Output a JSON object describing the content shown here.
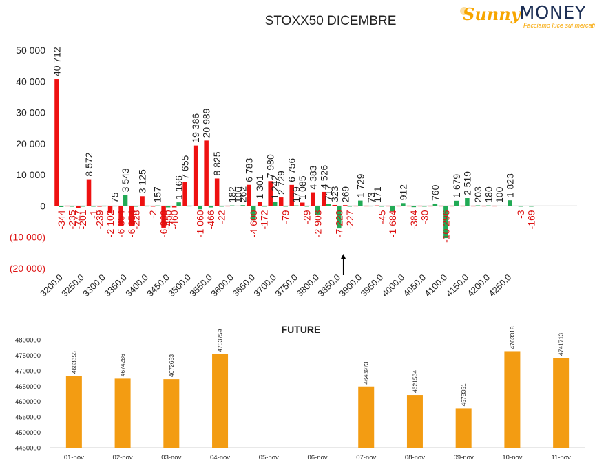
{
  "brand": {
    "name_a": "Sunny",
    "name_b": "MONEY",
    "tagline": "Facciamo luce sui mercati",
    "colors": {
      "sunny": "#f7a600",
      "money": "#1d2f55"
    }
  },
  "chart_data": [
    {
      "type": "bar",
      "title": "STOXX50 DICEMBRE",
      "ylim": [
        -20000,
        50000
      ],
      "yticks": [
        -20000,
        -10000,
        0,
        10000,
        20000,
        30000,
        40000,
        50000
      ],
      "ytick_labels": [
        "(20 000)",
        "(10 000)",
        "0",
        "10 000",
        "20 000",
        "30 000",
        "40 000",
        "50 000"
      ],
      "xtick_labels": [
        "3200.0",
        "3250.0",
        "3300.0",
        "3350.0",
        "3400.0",
        "3450.0",
        "3500.0",
        "3550.0",
        "3600.0",
        "3650.0",
        "3700.0",
        "3750.0",
        "3800.0",
        "3850.0",
        "3900.0",
        "3950.0",
        "4000.0",
        "4050.0",
        "4100.0",
        "4150.0",
        "4200.0",
        "4250.0"
      ],
      "strike_step": 25,
      "strike_min": 3200,
      "colors": {
        "positive": "#ee1111",
        "negative": "#22aa55",
        "negative_label": "#dd1111"
      },
      "marker_strike": 3875,
      "series": [
        {
          "values": [
            {
              "x": 3200,
              "v": 40712,
              "label": "40 712"
            },
            {
              "x": 3225,
              "v": 0
            },
            {
              "x": 3250,
              "v": -747,
              "label": "-747"
            },
            {
              "x": 3275,
              "v": 8572,
              "label": "8 572"
            },
            {
              "x": 3300,
              "v": -239,
              "label": "-239"
            },
            {
              "x": 3325,
              "v": -2102,
              "label": "-2 102"
            },
            {
              "x": 3350,
              "v": -6354,
              "label": "-6 354"
            },
            {
              "x": 3375,
              "v": -6354,
              "label": "-6 354"
            },
            {
              "x": 3400,
              "v": 3125,
              "label": "3 125"
            },
            {
              "x": 3425,
              "v": -2,
              "label": "-2"
            },
            {
              "x": 3450,
              "v": -6960,
              "label": "-6 960"
            },
            {
              "x": 3475,
              "v": -460,
              "label": "-460"
            },
            {
              "x": 3500,
              "v": 7655,
              "label": "7 655"
            },
            {
              "x": 3525,
              "v": 19386,
              "label": "19 386"
            },
            {
              "x": 3550,
              "v": 20989,
              "label": "20 989"
            },
            {
              "x": 3575,
              "v": 8825,
              "label": "8 825"
            },
            {
              "x": 3600,
              "v": 0
            },
            {
              "x": 3625,
              "v": 100,
              "label": "100"
            },
            {
              "x": 3650,
              "v": 6783,
              "label": "6 783"
            },
            {
              "x": 3675,
              "v": 1301,
              "label": "1 301"
            },
            {
              "x": 3700,
              "v": 7980,
              "label": "7 980"
            },
            {
              "x": 3725,
              "v": 2729,
              "label": "2 729"
            },
            {
              "x": 3750,
              "v": 6756,
              "label": "6 756"
            },
            {
              "x": 3775,
              "v": 1085,
              "label": "1 085"
            },
            {
              "x": 3800,
              "v": 4383,
              "label": "4 383"
            },
            {
              "x": 3825,
              "v": 4526,
              "label": "4 526"
            },
            {
              "x": 3850,
              "v": 323,
              "label": "323"
            },
            {
              "x": 3875,
              "v": 269,
              "label": "269"
            },
            {
              "x": 3900,
              "v": 0
            },
            {
              "x": 3925,
              "v": 0
            },
            {
              "x": 3950,
              "v": 171,
              "label": "171"
            },
            {
              "x": 3975,
              "v": 0
            },
            {
              "x": 4000,
              "v": 0
            },
            {
              "x": 4025,
              "v": 0
            },
            {
              "x": 4050,
              "v": 0
            },
            {
              "x": 4075,
              "v": 0
            },
            {
              "x": 4100,
              "v": 0
            },
            {
              "x": 4125,
              "v": 0
            },
            {
              "x": 4150,
              "v": 0
            },
            {
              "x": 4175,
              "v": 0
            },
            {
              "x": 4200,
              "v": 0
            },
            {
              "x": 4225,
              "v": 0
            }
          ]
        },
        {
          "values": [
            {
              "x": 3200,
              "v": -344,
              "label": "-344"
            },
            {
              "x": 3225,
              "v": -235,
              "label": "-235"
            },
            {
              "x": 3250,
              "v": -201,
              "label": "-201"
            },
            {
              "x": 3275,
              "v": -1,
              "label": "-1"
            },
            {
              "x": 3300,
              "v": 0
            },
            {
              "x": 3325,
              "v": 75,
              "label": "75"
            },
            {
              "x": 3350,
              "v": 3543,
              "label": "3 543"
            },
            {
              "x": 3375,
              "v": -228,
              "label": "-228"
            },
            {
              "x": 3400,
              "v": 0
            },
            {
              "x": 3425,
              "v": 157,
              "label": "157"
            },
            {
              "x": 3450,
              "v": -450,
              "label": "-450"
            },
            {
              "x": 3475,
              "v": 1166,
              "label": "1 166"
            },
            {
              "x": 3500,
              "v": 0
            },
            {
              "x": 3525,
              "v": -1060,
              "label": "-1 060"
            },
            {
              "x": 3550,
              "v": -466,
              "label": "-466"
            },
            {
              "x": 3575,
              "v": -22,
              "label": "-22"
            },
            {
              "x": 3600,
              "v": 182,
              "label": "182"
            },
            {
              "x": 3625,
              "v": 262,
              "label": "262"
            },
            {
              "x": 3650,
              "v": -4600,
              "label": "-4 600"
            },
            {
              "x": 3675,
              "v": -172,
              "label": "-172"
            },
            {
              "x": 3700,
              "v": 1242,
              "label": "1 242"
            },
            {
              "x": 3725,
              "v": -79,
              "label": "-79"
            },
            {
              "x": 3750,
              "v": 179,
              "label": "179"
            },
            {
              "x": 3775,
              "v": -29,
              "label": "-29"
            },
            {
              "x": 3800,
              "v": -2903,
              "label": "-2 903"
            },
            {
              "x": 3825,
              "v": 717,
              "label": "717"
            },
            {
              "x": 3850,
              "v": -7220,
              "label": "-7 220"
            },
            {
              "x": 3875,
              "v": -227,
              "label": "-227"
            },
            {
              "x": 3900,
              "v": 1729,
              "label": "1 729"
            },
            {
              "x": 3925,
              "v": 73,
              "label": "73"
            },
            {
              "x": 3950,
              "v": -45,
              "label": "-45"
            },
            {
              "x": 3975,
              "v": -1684,
              "label": "-1 684"
            },
            {
              "x": 4000,
              "v": 912,
              "label": "912"
            },
            {
              "x": 4025,
              "v": -384,
              "label": "-384"
            },
            {
              "x": 4050,
              "v": -30,
              "label": "-30"
            },
            {
              "x": 4075,
              "v": 760,
              "label": "760"
            },
            {
              "x": 4100,
              "v": -10296,
              "label": "-10 296"
            },
            {
              "x": 4125,
              "v": 1679,
              "label": "1 679"
            },
            {
              "x": 4150,
              "v": 2519,
              "label": "2 519"
            },
            {
              "x": 4175,
              "v": 203,
              "label": "203"
            },
            {
              "x": 4200,
              "v": 180,
              "label": "180"
            },
            {
              "x": 4225,
              "v": 100,
              "label": "100"
            },
            {
              "x": 4250,
              "v": 1823,
              "label": "1 823"
            },
            {
              "x": 4275,
              "v": -3,
              "label": "-3"
            },
            {
              "x": 4300,
              "v": -169,
              "label": "-169"
            }
          ]
        }
      ]
    },
    {
      "type": "bar",
      "title": "FUTURE",
      "ylim": [
        4450000,
        4800000
      ],
      "yticks": [
        4450000,
        4500000,
        4550000,
        4600000,
        4650000,
        4700000,
        4750000,
        4800000
      ],
      "categories": [
        "01-nov",
        "02-nov",
        "03-nov",
        "04-nov",
        "05-nov",
        "06-nov",
        "07-nov",
        "08-nov",
        "09-nov",
        "10-nov",
        "11-nov"
      ],
      "values": [
        4683355,
        4674286,
        4672653,
        4753759,
        null,
        null,
        4648973,
        4621534,
        4578351,
        4763318,
        4741713
      ],
      "color": "#f39c12"
    }
  ]
}
